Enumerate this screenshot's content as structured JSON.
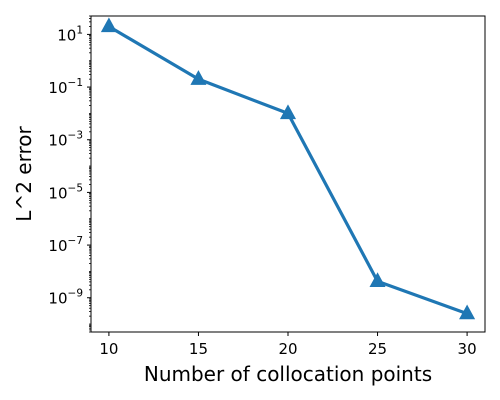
{
  "chart_data": {
    "type": "line",
    "title": "",
    "xlabel": "Number of collocation points",
    "ylabel": "L^2 error",
    "yscale": "log",
    "xlim": [
      9,
      31
    ],
    "ylim": [
      5e-11,
      50
    ],
    "x": [
      10,
      15,
      20,
      25,
      30
    ],
    "series": [
      {
        "values": [
          20,
          0.2,
          0.01,
          4.2e-09,
          2.5e-10
        ],
        "color": "#1f77b4",
        "marker": "triangle-up"
      }
    ],
    "x_ticks": [
      {
        "value": 10,
        "label": "10"
      },
      {
        "value": 15,
        "label": "15"
      },
      {
        "value": 20,
        "label": "20"
      },
      {
        "value": 25,
        "label": "25"
      },
      {
        "value": 30,
        "label": "30"
      }
    ],
    "y_ticks": [
      {
        "exp": 1,
        "base": "10",
        "sup": "1"
      },
      {
        "exp": -1,
        "base": "10",
        "sup": "−1"
      },
      {
        "exp": -3,
        "base": "10",
        "sup": "−3"
      },
      {
        "exp": -5,
        "base": "10",
        "sup": "−5"
      },
      {
        "exp": -7,
        "base": "10",
        "sup": "−7"
      },
      {
        "exp": -9,
        "base": "10",
        "sup": "−9"
      }
    ],
    "grid": false,
    "legend": "none"
  }
}
